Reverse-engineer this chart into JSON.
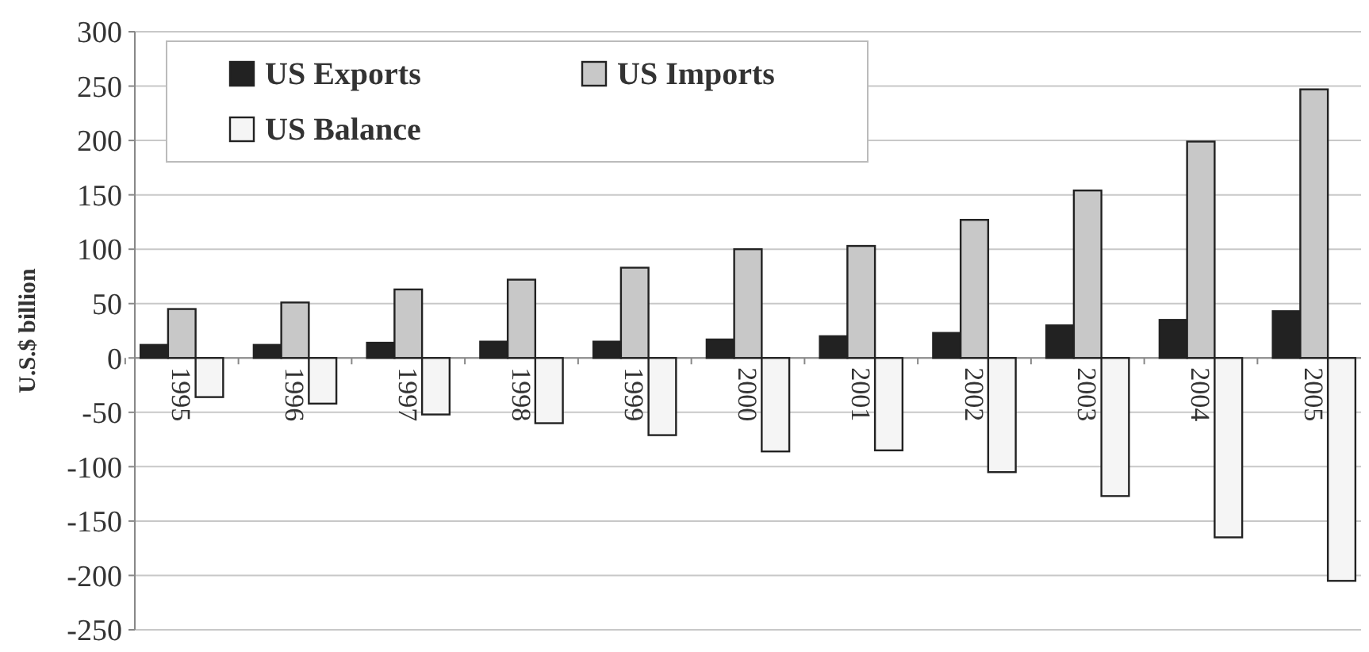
{
  "chart_data": {
    "type": "bar",
    "ylabel": "U.S.$ billion",
    "categories": [
      "1995",
      "1996",
      "1997",
      "1998",
      "1999",
      "2000",
      "2001",
      "2002",
      "2003",
      "2004",
      "2005"
    ],
    "series": [
      {
        "name": "US Exports",
        "color": "#222222",
        "values": [
          12,
          12,
          14,
          15,
          15,
          17,
          20,
          23,
          30,
          35,
          43
        ]
      },
      {
        "name": "US Imports",
        "color": "#c8c8c8",
        "values": [
          45,
          51,
          63,
          72,
          83,
          100,
          103,
          127,
          154,
          199,
          247
        ]
      },
      {
        "name": "US Balance",
        "color": "#f5f5f5",
        "values": [
          -36,
          -42,
          -52,
          -60,
          -71,
          -86,
          -85,
          -105,
          -127,
          -165,
          -205
        ]
      }
    ],
    "ylim": [
      -250,
      300
    ],
    "yticks": [
      -250,
      -200,
      -150,
      -100,
      -50,
      0,
      50,
      100,
      150,
      200,
      250,
      300
    ],
    "grid": "y",
    "legend": "top left"
  }
}
